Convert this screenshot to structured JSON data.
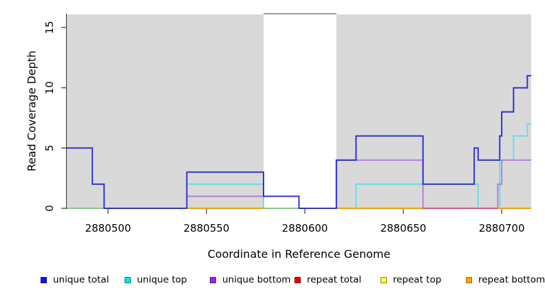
{
  "chart_data": {
    "type": "line",
    "subtype": "step-coverage",
    "title": "",
    "xlabel": "Coordinate in Reference Genome",
    "ylabel": "Read Coverage Depth",
    "xlim": [
      2880479,
      2880715
    ],
    "ylim": [
      0,
      15
    ],
    "x_ticks": [
      2880500,
      2880550,
      2880600,
      2880650,
      2880700
    ],
    "y_ticks": [
      0,
      5,
      10,
      15
    ],
    "grid": "off",
    "plot_bg_color": "#d9d9d9",
    "axis_color": "#333333",
    "highlight_band": {
      "x0": 2880579,
      "x1": 2880616,
      "color": "#ffffff",
      "top_border_color": "#9a9a9a"
    },
    "series": [
      {
        "name": "zero-baseline",
        "color": "#86c98a",
        "segments": [
          [
            [
              2880479,
              0
            ],
            [
              2880540,
              0
            ]
          ],
          [
            [
              2880579,
              0
            ],
            [
              2880616,
              0
            ]
          ]
        ]
      },
      {
        "name": "repeat total",
        "color": "#d05575",
        "segments": [
          [
            [
              2880660,
              0
            ],
            [
              2880698,
              0
            ]
          ]
        ]
      },
      {
        "name": "repeat bottom",
        "color": "#ff9e00",
        "segments": [
          [
            [
              2880540,
              0
            ],
            [
              2880579,
              0
            ]
          ],
          [
            [
              2880616,
              0
            ],
            [
              2880660,
              0
            ]
          ],
          [
            [
              2880698,
              0
            ],
            [
              2880715,
              0
            ]
          ]
        ]
      },
      {
        "name": "unique top",
        "color": "#6adcec",
        "segments": [
          [
            [
              2880540,
              0
            ],
            [
              2880540,
              2
            ],
            [
              2880579,
              2
            ],
            [
              2880579,
              0
            ]
          ],
          [
            [
              2880626,
              0
            ],
            [
              2880626,
              2
            ],
            [
              2880688,
              2
            ],
            [
              2880688,
              0
            ]
          ],
          [
            [
              2880699,
              0
            ],
            [
              2880699,
              4
            ],
            [
              2880706,
              4
            ],
            [
              2880706,
              6
            ],
            [
              2880713,
              6
            ],
            [
              2880713,
              7
            ],
            [
              2880715,
              7
            ]
          ]
        ]
      },
      {
        "name": "unique bottom",
        "color": "#b57fdc",
        "segments": [
          [
            [
              2880540,
              0
            ],
            [
              2880540,
              1
            ],
            [
              2880597,
              1
            ],
            [
              2880597,
              0
            ]
          ],
          [
            [
              2880616,
              0
            ],
            [
              2880616,
              4
            ],
            [
              2880660,
              4
            ],
            [
              2880660,
              0
            ]
          ],
          [
            [
              2880698,
              0
            ],
            [
              2880698,
              2
            ],
            [
              2880700,
              2
            ],
            [
              2880700,
              4
            ],
            [
              2880715,
              4
            ]
          ]
        ]
      },
      {
        "name": "unique total",
        "color": "#3030dd",
        "segments": [
          [
            [
              2880479,
              5
            ],
            [
              2880492,
              5
            ],
            [
              2880492,
              2
            ],
            [
              2880498,
              2
            ],
            [
              2880498,
              0
            ],
            [
              2880540,
              0
            ],
            [
              2880540,
              3
            ],
            [
              2880579,
              3
            ],
            [
              2880579,
              1
            ],
            [
              2880597,
              1
            ],
            [
              2880597,
              0
            ],
            [
              2880616,
              0
            ],
            [
              2880616,
              4
            ],
            [
              2880626,
              4
            ],
            [
              2880626,
              6
            ],
            [
              2880660,
              6
            ],
            [
              2880660,
              2
            ],
            [
              2880686,
              2
            ],
            [
              2880686,
              5
            ],
            [
              2880688,
              5
            ],
            [
              2880688,
              4
            ],
            [
              2880699,
              4
            ],
            [
              2880699,
              6
            ],
            [
              2880700,
              6
            ],
            [
              2880700,
              8
            ],
            [
              2880706,
              8
            ],
            [
              2880706,
              10
            ],
            [
              2880713,
              10
            ],
            [
              2880713,
              11
            ],
            [
              2880715,
              11
            ]
          ]
        ]
      }
    ],
    "legend_position": "bottom",
    "legend": [
      {
        "label": "unique total",
        "color": "#1414f0",
        "border": "#0000a0"
      },
      {
        "label": "unique top",
        "color": "#00e5ee",
        "border": "#007f8c"
      },
      {
        "label": "unique bottom",
        "color": "#a020f0",
        "border": "#5c0f8c"
      },
      {
        "label": "repeat total",
        "color": "#ee0000",
        "border": "#990000"
      },
      {
        "label": "repeat top",
        "color": "#ffff33",
        "border": "#8c8c00"
      },
      {
        "label": "repeat bottom",
        "color": "#f5a800",
        "border": "#a86a00"
      }
    ]
  }
}
